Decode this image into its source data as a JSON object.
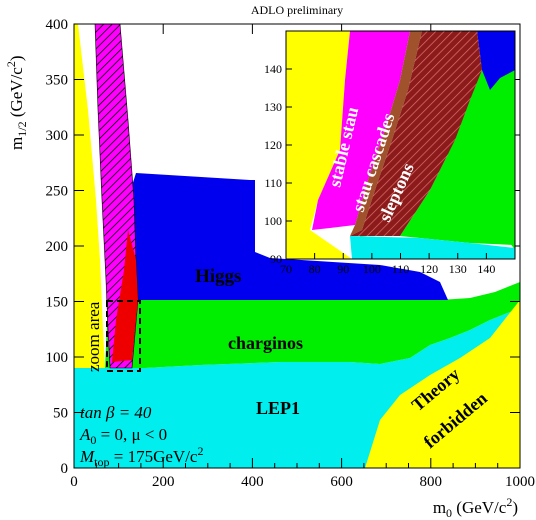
{
  "chart_data": {
    "type": "area",
    "title": "ADLO preliminary",
    "xlabel": "m₀ (GeV/c²)",
    "ylabel": "m₁/₂ (GeV/c²)",
    "xlim": [
      0,
      1000
    ],
    "ylim": [
      0,
      400
    ],
    "xticks": [
      "0",
      "200",
      "400",
      "600",
      "800",
      "1000"
    ],
    "yticks": [
      "0",
      "50",
      "100",
      "150",
      "200",
      "250",
      "300",
      "350",
      "400"
    ],
    "regions": [
      {
        "name": "Higgs",
        "color": "#0000ee"
      },
      {
        "name": "charginos",
        "color": "#00ee00"
      },
      {
        "name": "LEP1",
        "color": "#00eeee"
      },
      {
        "name": "Theory forbidden",
        "color": "#ffff00"
      },
      {
        "name": "zoom area",
        "color": "#000000"
      }
    ],
    "parameters": [
      "tan β = 40",
      "A₀ = 0,  μ < 0",
      "M_top = 175 GeV/c²"
    ],
    "inset": {
      "xlim": [
        70,
        150
      ],
      "ylim": [
        90,
        150
      ],
      "xticks": [
        "70",
        "80",
        "90",
        "100",
        "110",
        "120",
        "130",
        "140"
      ],
      "yticks": [
        "90",
        "100",
        "110",
        "120",
        "130",
        "140"
      ],
      "regions": [
        {
          "name": "stable stau",
          "color": "#ff00ff"
        },
        {
          "name": "stau cascades",
          "color": "#8b4513"
        },
        {
          "name": "sleptons",
          "color": "#8b1a1a"
        }
      ]
    }
  },
  "labels": {
    "higgs": "Higgs",
    "charginos": "charginos",
    "lep1": "LEP1",
    "theory1": "Theory",
    "theory2": "forbidden",
    "zoom": "zoom area",
    "param1_base": "tan β = 40",
    "param2_base": "A",
    "param2_sub": "0",
    "param2_rest": " = 0,  μ < 0",
    "param3_base": "M",
    "param3_sub": "top",
    "param3_rest": " = 175GeV/c",
    "param3_sup": "2",
    "stable_stau": "stable stau",
    "stau_cascades": "stau cascades",
    "sleptons": "sleptons"
  },
  "axis_parts": {
    "x_base": "m",
    "x_sub": "0",
    "x_rest": " (GeV/c",
    "x_sup": "2",
    "x_close": ")",
    "y_base": "m",
    "y_sub": "1/2",
    "y_rest": " (GeV/c",
    "y_sup": "2",
    "y_close": ")"
  }
}
